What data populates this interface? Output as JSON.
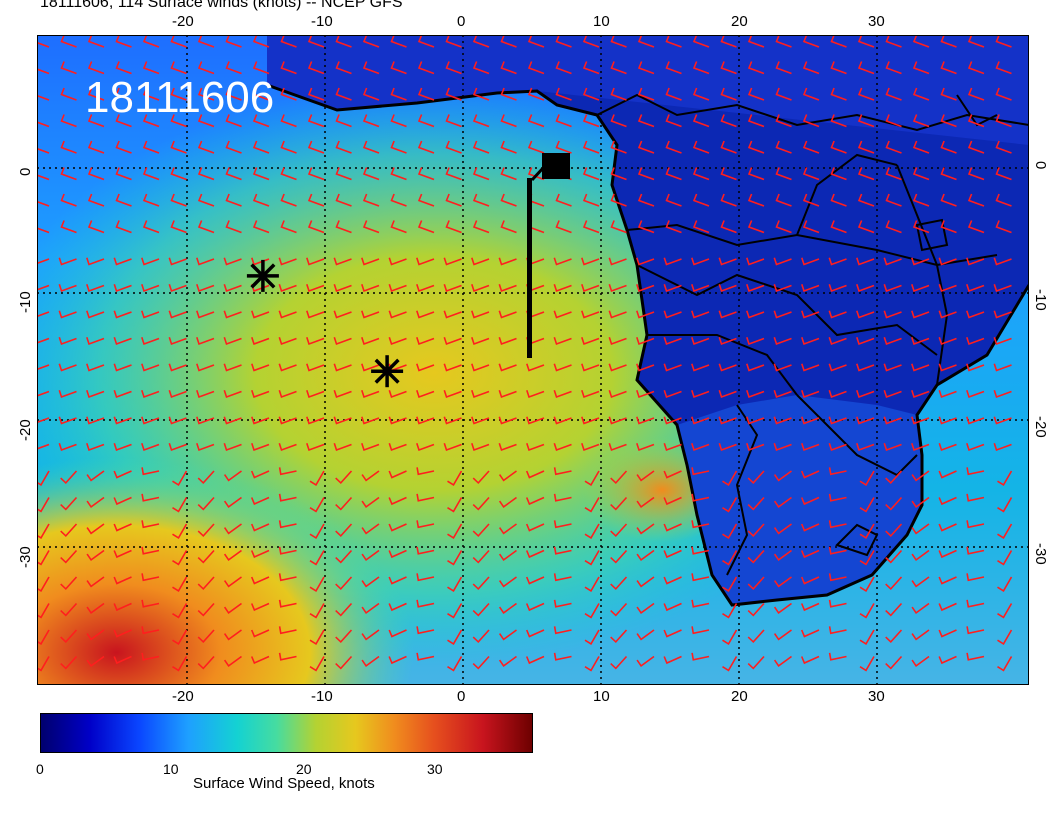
{
  "title": "18111606, 114 Surface winds (knots) -- NCEP GFS",
  "map": {
    "stamp": "18111606",
    "lon_ticks_top": [
      "-20",
      "-10",
      "0",
      "10",
      "20",
      "30"
    ],
    "lon_ticks_bottom": [
      "-20",
      "-10",
      "0",
      "10",
      "20",
      "30"
    ],
    "lat_ticks_left": [
      "0",
      "-10",
      "-20",
      "-30"
    ],
    "lat_ticks_right": [
      "0",
      "-10",
      "-20",
      "-30"
    ],
    "markers": [
      {
        "name": "storm-marker-1",
        "lon": -14.5,
        "lat": -8.5
      },
      {
        "name": "storm-marker-2",
        "lon": -5.5,
        "lat": -16
      }
    ],
    "colors": {
      "barb": "#ff1e1e",
      "coast": "#000000",
      "grid": "#000000"
    }
  },
  "colorbar": {
    "ticks": [
      "0",
      "10",
      "20",
      "30"
    ],
    "label": "Surface Wind Speed, knots"
  }
}
